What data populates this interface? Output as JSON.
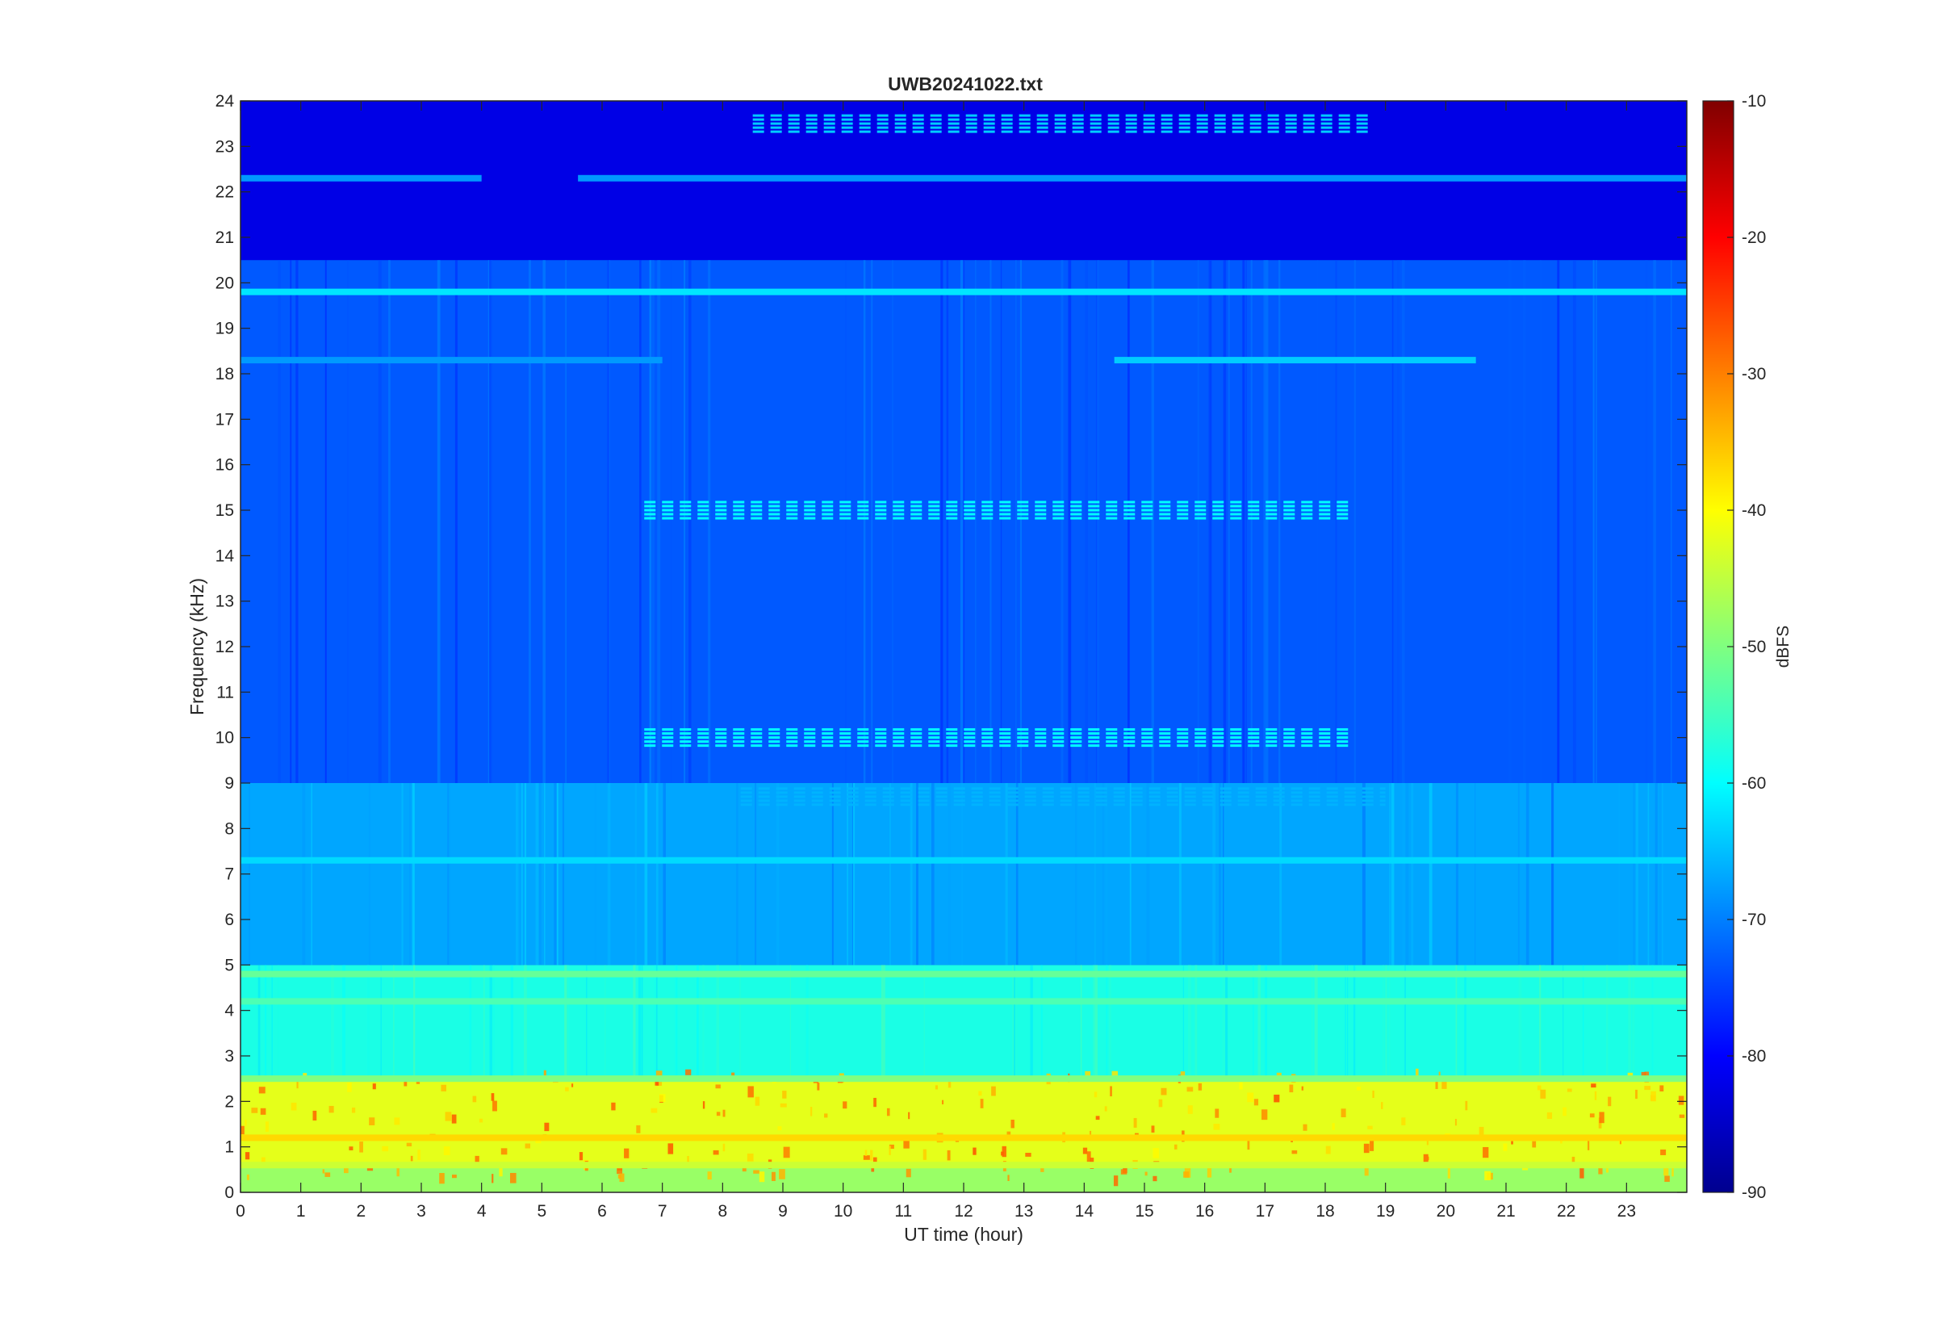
{
  "chart_data": {
    "type": "heatmap",
    "title": "UWB20241022.txt",
    "xlabel": "UT time (hour)",
    "ylabel": "Frequency (kHz)",
    "xlim": [
      0,
      24
    ],
    "ylim": [
      0,
      24
    ],
    "x_ticks": [
      "0",
      "1",
      "2",
      "3",
      "4",
      "5",
      "6",
      "7",
      "8",
      "9",
      "10",
      "11",
      "12",
      "13",
      "14",
      "15",
      "16",
      "17",
      "18",
      "19",
      "20",
      "21",
      "22",
      "23"
    ],
    "y_ticks": [
      "0",
      "1",
      "2",
      "3",
      "4",
      "5",
      "6",
      "7",
      "8",
      "9",
      "10",
      "11",
      "12",
      "13",
      "14",
      "15",
      "16",
      "17",
      "18",
      "19",
      "20",
      "21",
      "22",
      "23",
      "24"
    ],
    "colorbar": {
      "label": "dBFS",
      "range": [
        -90,
        -10
      ],
      "ticks": [
        "-10",
        "-20",
        "-30",
        "-40",
        "-50",
        "-60",
        "-70",
        "-80",
        "-90"
      ],
      "colormap": "jet"
    },
    "grid": false,
    "bands": [
      {
        "f_min": 0,
        "f_max": 0.6,
        "level_dbfs": -48
      },
      {
        "f_min": 0.6,
        "f_max": 2.5,
        "level_dbfs": -42
      },
      {
        "f_min": 2.5,
        "f_max": 5,
        "level_dbfs": -58
      },
      {
        "f_min": 5,
        "f_max": 9,
        "level_dbfs": -67
      },
      {
        "f_min": 9,
        "f_max": 20.5,
        "level_dbfs": -73
      },
      {
        "f_min": 20.5,
        "f_max": 24,
        "level_dbfs": -82
      }
    ],
    "tone_lines": [
      {
        "freq": 19.8,
        "t_start": 0,
        "t_end": 24,
        "level_dbfs": -62
      },
      {
        "freq": 18.3,
        "t_start": 0,
        "t_end": 7.0,
        "level_dbfs": -68
      },
      {
        "freq": 18.3,
        "t_start": 14.5,
        "t_end": 20.5,
        "level_dbfs": -64
      },
      {
        "freq": 22.3,
        "t_start": 0,
        "t_end": 4.0,
        "level_dbfs": -68
      },
      {
        "freq": 22.3,
        "t_start": 5.6,
        "t_end": 24,
        "level_dbfs": -68
      },
      {
        "freq": 4.8,
        "t_start": 0,
        "t_end": 24,
        "level_dbfs": -52
      },
      {
        "freq": 4.2,
        "t_start": 0,
        "t_end": 24,
        "level_dbfs": -54
      },
      {
        "freq": 2.5,
        "t_start": 0,
        "t_end": 24,
        "level_dbfs": -50
      },
      {
        "freq": 1.2,
        "t_start": 0,
        "t_end": 24,
        "level_dbfs": -37
      },
      {
        "freq": 0.6,
        "t_start": 0,
        "t_end": 24,
        "level_dbfs": -44
      },
      {
        "freq": 7.3,
        "t_start": 0,
        "t_end": 24,
        "level_dbfs": -63
      }
    ],
    "pulse_trains": [
      {
        "freq": 15.0,
        "t_start": 6.7,
        "t_end": 18.4,
        "level_dbfs": -60
      },
      {
        "freq": 10.0,
        "t_start": 6.7,
        "t_end": 18.4,
        "level_dbfs": -60
      },
      {
        "freq": 23.5,
        "t_start": 8.5,
        "t_end": 18.8,
        "level_dbfs": -64
      },
      {
        "freq": 8.7,
        "t_start": 8.3,
        "t_end": 19.0,
        "level_dbfs": -66
      }
    ]
  }
}
